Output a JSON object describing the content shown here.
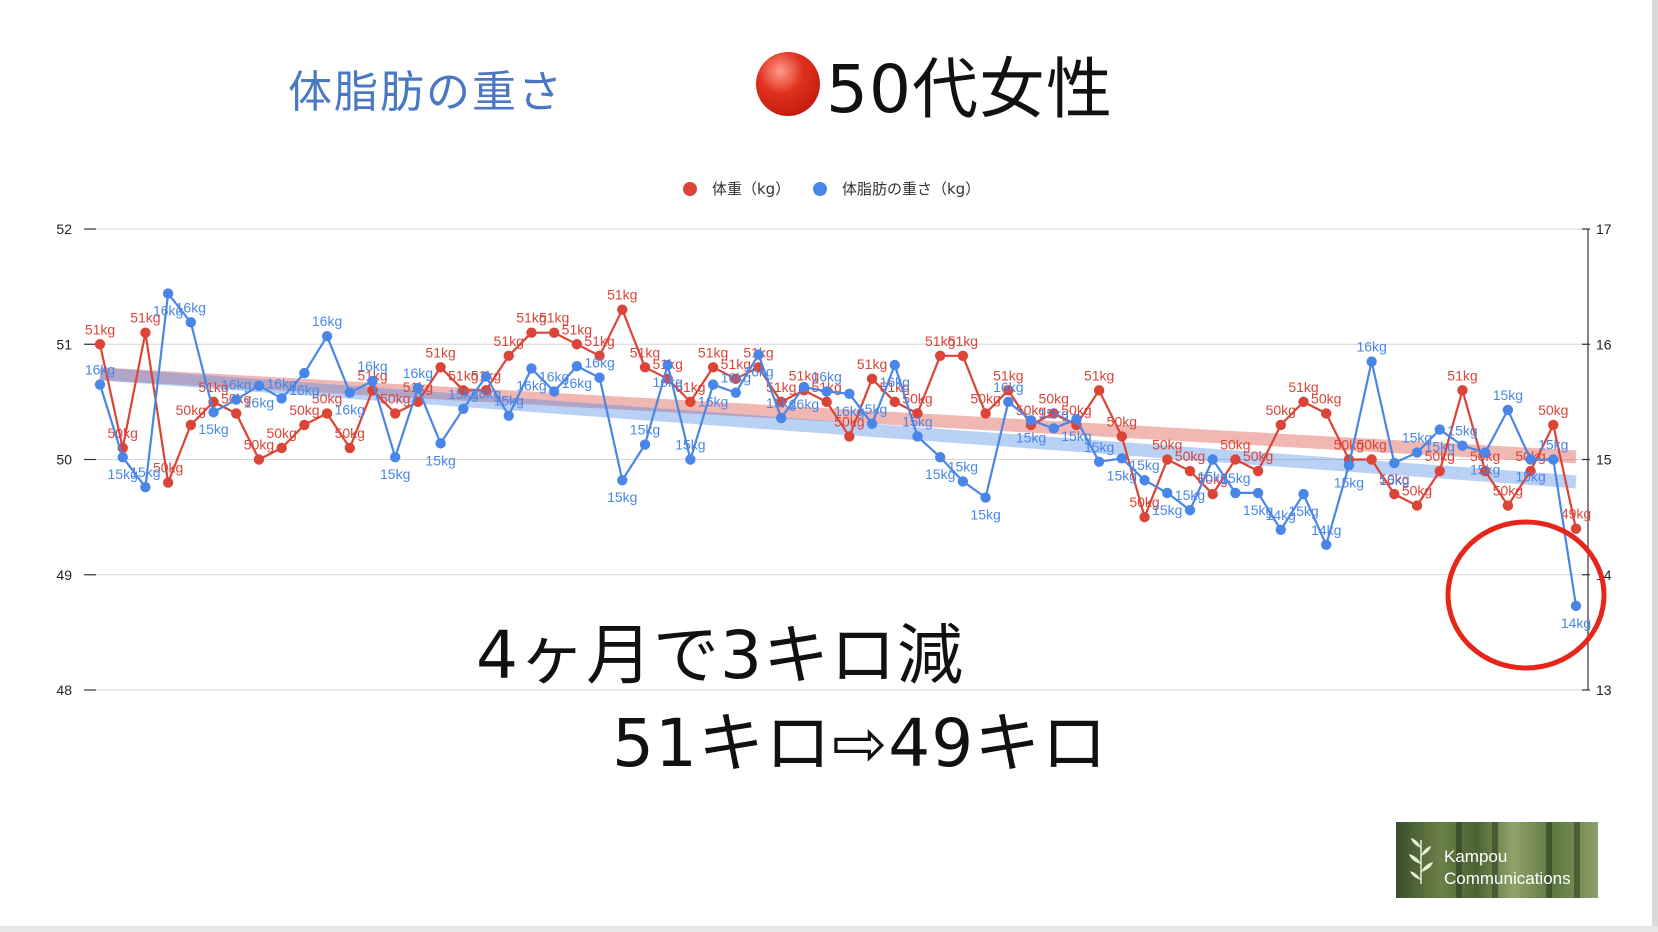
{
  "header": {
    "subtitle": "体脂肪の重さ",
    "title": "50代女性"
  },
  "captions": {
    "line1": "4ヶ月で3キロ減",
    "line2": "51キロ⇨49キロ"
  },
  "logo": {
    "line1": "Kampou",
    "line2": "Communications"
  },
  "colors": {
    "weight": "#db4437",
    "fat": "#4a86e8",
    "highlight_circle": "#e8251b"
  },
  "chart_data": {
    "type": "line",
    "legend_position": "top",
    "grid": true,
    "trendlines": true,
    "y_left": {
      "ticks": [
        "52",
        "51",
        "50",
        "49",
        "48"
      ],
      "ylim": [
        48,
        52
      ]
    },
    "y_right": {
      "ticks": [
        "17",
        "16",
        "15",
        "14",
        "13"
      ],
      "ylim": [
        13,
        17
      ]
    },
    "series": [
      {
        "name": "体重（kg）",
        "axis": "left",
        "color": "#db4437",
        "label_unit": "kg",
        "values": [
          51.0,
          50.1,
          51.1,
          49.8,
          50.3,
          50.5,
          50.4,
          50.0,
          50.1,
          50.3,
          50.4,
          50.1,
          50.6,
          50.4,
          50.5,
          50.8,
          50.6,
          50.6,
          50.9,
          51.1,
          51.1,
          51.0,
          50.9,
          51.3,
          50.8,
          50.7,
          50.5,
          50.8,
          50.7,
          50.8,
          50.5,
          50.6,
          50.5,
          50.2,
          50.7,
          50.5,
          50.4,
          50.9,
          50.9,
          50.4,
          50.6,
          50.3,
          50.4,
          50.3,
          50.6,
          50.2,
          49.5,
          50.0,
          49.9,
          49.7,
          50.0,
          49.9,
          50.3,
          50.5,
          50.4,
          50.0,
          50.0,
          49.7,
          49.6,
          49.9,
          50.6,
          49.9,
          49.6,
          49.9,
          50.3,
          49.4
        ]
      },
      {
        "name": "体脂肪の重さ（kg）",
        "axis": "right",
        "color": "#4a86e8",
        "label_unit": "kg",
        "values": [
          15.65,
          15.02,
          14.76,
          16.44,
          16.19,
          15.41,
          15.52,
          15.64,
          15.53,
          15.75,
          16.07,
          15.58,
          15.68,
          15.02,
          15.62,
          15.14,
          15.44,
          15.72,
          15.38,
          15.79,
          15.59,
          15.81,
          15.71,
          14.82,
          15.13,
          15.82,
          15.0,
          15.65,
          15.58,
          15.91,
          15.36,
          15.63,
          15.59,
          15.57,
          15.31,
          15.82,
          15.2,
          15.02,
          14.81,
          14.67,
          15.5,
          15.34,
          15.27,
          15.35,
          14.98,
          15.01,
          14.82,
          14.71,
          14.56,
          15.0,
          14.71,
          14.71,
          14.39,
          14.7,
          14.26,
          14.95,
          15.85,
          14.97,
          15.06,
          15.26,
          15.12,
          15.06,
          15.43,
          15.0,
          15.0,
          13.73
        ]
      }
    ]
  }
}
